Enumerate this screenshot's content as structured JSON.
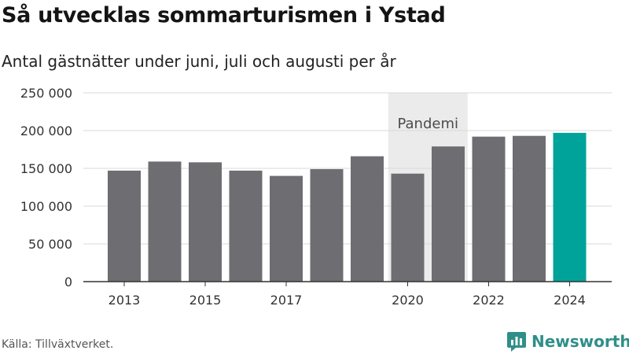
{
  "title": "Så utvecklas sommarturismen i Ystad",
  "subtitle": "Antal gästnätter under juni, juli och augusti per år",
  "source": "Källa: Tillväxtverket.",
  "brand": {
    "name": "Newsworthy",
    "logo_icon": "bar-chart-speech-bubble-icon",
    "color": "#2f8f88"
  },
  "chart_data": {
    "type": "bar",
    "categories": [
      "2013",
      "2014",
      "2015",
      "2016",
      "2017",
      "2018",
      "2019",
      "2020",
      "2021",
      "2022",
      "2023",
      "2024"
    ],
    "values": [
      147000,
      159000,
      158000,
      147000,
      140000,
      149000,
      166000,
      143000,
      179000,
      192000,
      193000,
      197000
    ],
    "x_tick_labels": [
      "2013",
      "2015",
      "2017",
      "2020",
      "2022",
      "2024"
    ],
    "y_ticks": [
      0,
      50000,
      100000,
      150000,
      200000,
      250000
    ],
    "y_tick_labels": [
      "0",
      "50 000",
      "100 000",
      "150 000",
      "200 000",
      "250 000"
    ],
    "ylim": [
      0,
      250000
    ],
    "grid": true,
    "highlight": {
      "category": "2024",
      "color": "#00a39a"
    },
    "bar_color": "#6e6d72",
    "annotation": {
      "label": "Pandemi",
      "from": "2020",
      "to": "2021",
      "color": "#ebebeb"
    }
  }
}
